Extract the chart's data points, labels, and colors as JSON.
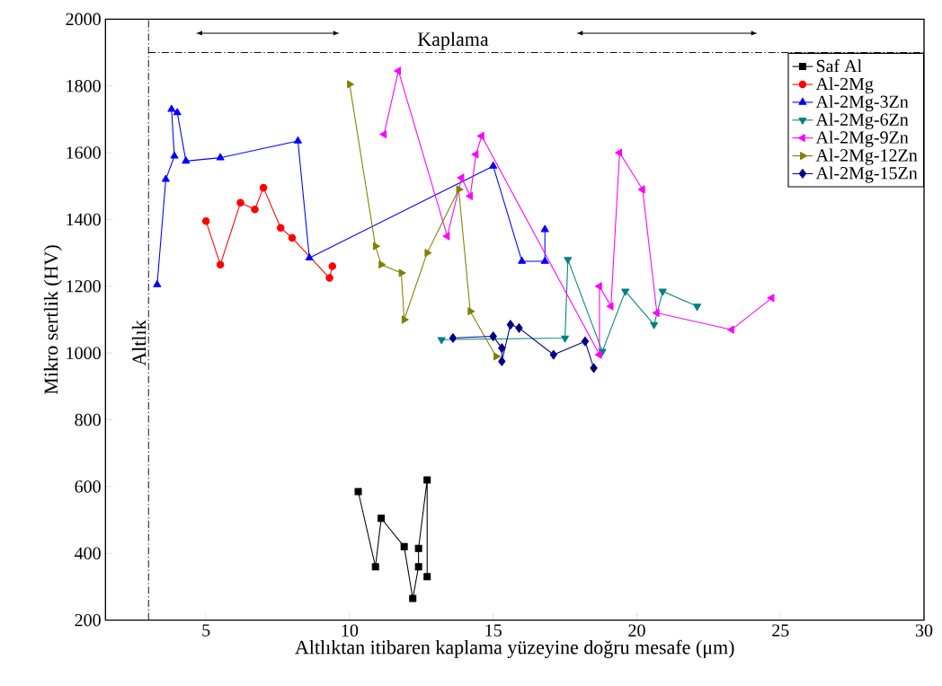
{
  "chart_data": {
    "type": "line",
    "xlabel": "Altlıktan itibaren kaplama yüzeyine doğru mesafe (μm)",
    "ylabel": "Mikro sertlik (HV)",
    "xlim": [
      1.5,
      30
    ],
    "ylim": [
      200,
      2000
    ],
    "xticks": [
      5,
      10,
      15,
      20,
      25,
      30
    ],
    "yticks": [
      200,
      400,
      600,
      800,
      1000,
      1200,
      1400,
      1600,
      1800,
      2000
    ],
    "grid": false,
    "legend": "top right",
    "line_style": "solid",
    "ref_lines": [
      {
        "axis": "x",
        "value": 3,
        "label": "Altlık",
        "line_style": "dashdot",
        "color": "#000000"
      },
      {
        "axis": "y",
        "value": 1900,
        "label": "Kaplama",
        "line_style": "dashdot",
        "color": "#000000"
      }
    ],
    "series": [
      {
        "name": "Saf Al",
        "color": "#000000",
        "marker": "square",
        "x": [
          10.3,
          10.9,
          11.1,
          11.9,
          12.2,
          12.4,
          12.4,
          12.7,
          12.7
        ],
        "values": [
          585,
          360,
          505,
          420,
          265,
          360,
          415,
          620,
          330
        ]
      },
      {
        "name": "Al-2Mg",
        "color": "#ff0000",
        "marker": "circle",
        "x": [
          5.0,
          5.5,
          6.2,
          6.7,
          7.0,
          7.6,
          8.0,
          9.3,
          9.4
        ],
        "values": [
          1395,
          1265,
          1450,
          1430,
          1495,
          1375,
          1345,
          1225,
          1260
        ]
      },
      {
        "name": "Al-2Mg-3Zn",
        "color": "#0000ff",
        "marker": "triangle",
        "x": [
          3.3,
          3.6,
          3.9,
          3.8,
          4.0,
          4.3,
          5.5,
          8.2,
          8.6,
          15.0,
          16.0,
          16.8,
          16.8
        ],
        "values": [
          1205,
          1520,
          1590,
          1730,
          1720,
          1575,
          1585,
          1635,
          1285,
          1560,
          1275,
          1275,
          1370
        ]
      },
      {
        "name": "Al-2Mg-6Zn",
        "color": "#008080",
        "marker": "triangle-down",
        "x": [
          13.2,
          17.5,
          17.6,
          18.8,
          19.6,
          20.6,
          20.9,
          22.1
        ],
        "values": [
          1040,
          1045,
          1280,
          1005,
          1185,
          1085,
          1185,
          1140
        ]
      },
      {
        "name": "Al-2Mg-9Zn",
        "color": "#ff00ff",
        "marker": "triangle-left",
        "x": [
          11.2,
          11.7,
          13.4,
          13.9,
          14.2,
          14.4,
          14.6,
          18.7,
          18.7,
          19.1,
          19.4,
          20.2,
          20.7,
          23.3,
          24.7
        ],
        "values": [
          1655,
          1845,
          1350,
          1525,
          1470,
          1595,
          1650,
          995,
          1200,
          1140,
          1600,
          1490,
          1120,
          1070,
          1165
        ]
      },
      {
        "name": "Al-2Mg-12Zn",
        "color": "#808000",
        "marker": "triangle-right",
        "x": [
          10.0,
          10.9,
          11.1,
          11.8,
          11.9,
          12.7,
          13.8,
          14.2,
          15.1
        ],
        "values": [
          1805,
          1320,
          1265,
          1240,
          1100,
          1300,
          1490,
          1125,
          990
        ]
      },
      {
        "name": "Al-2Mg-15Zn",
        "color": "#000080",
        "marker": "diamond",
        "x": [
          13.6,
          15.0,
          15.3,
          15.3,
          15.6,
          15.9,
          17.1,
          18.2,
          18.5
        ],
        "values": [
          1045,
          1050,
          1015,
          975,
          1085,
          1075,
          995,
          1035,
          955
        ]
      }
    ]
  }
}
